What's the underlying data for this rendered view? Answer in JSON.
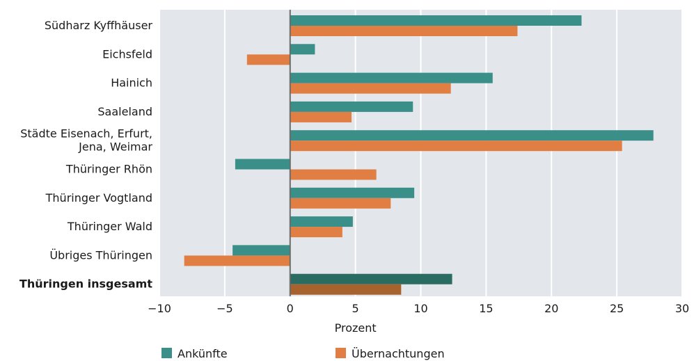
{
  "chart_data": {
    "type": "bar",
    "orientation": "horizontal",
    "categories": [
      "Südharz Kyffhäuser",
      "Eichsfeld",
      "Hainich",
      "Saaleland",
      [
        "Städte Eisenach, Erfurt,",
        "Jena, Weimar"
      ],
      "Thüringer Rhön",
      "Thüringer Vogtland",
      "Thüringer Wald",
      "Übriges Thüringen",
      "Thüringen insgesamt"
    ],
    "highlighted_category_index": 9,
    "series": [
      {
        "name": "Ankünfte",
        "color": "#3a8f88",
        "highlight_color": "#2a6b62",
        "values": [
          22.3,
          1.9,
          15.5,
          9.4,
          27.8,
          -4.2,
          9.5,
          4.8,
          -4.4,
          12.4
        ]
      },
      {
        "name": "Übernachtungen",
        "color": "#e07e43",
        "highlight_color": "#a8622e",
        "values": [
          17.4,
          -3.3,
          12.3,
          4.7,
          25.4,
          6.6,
          7.7,
          4.0,
          -8.1,
          8.5
        ]
      }
    ],
    "xlabel": "Prozent",
    "xlim": [
      -10,
      30
    ],
    "xticks": [
      -10,
      -5,
      0,
      5,
      10,
      15,
      20,
      25,
      30
    ],
    "xtick_labels": [
      "−10",
      "−5",
      "0",
      "5",
      "10",
      "15",
      "20",
      "25",
      "30"
    ],
    "grid": "vertical",
    "plot_background": "#e3e7eb",
    "legend_position": "bottom"
  }
}
